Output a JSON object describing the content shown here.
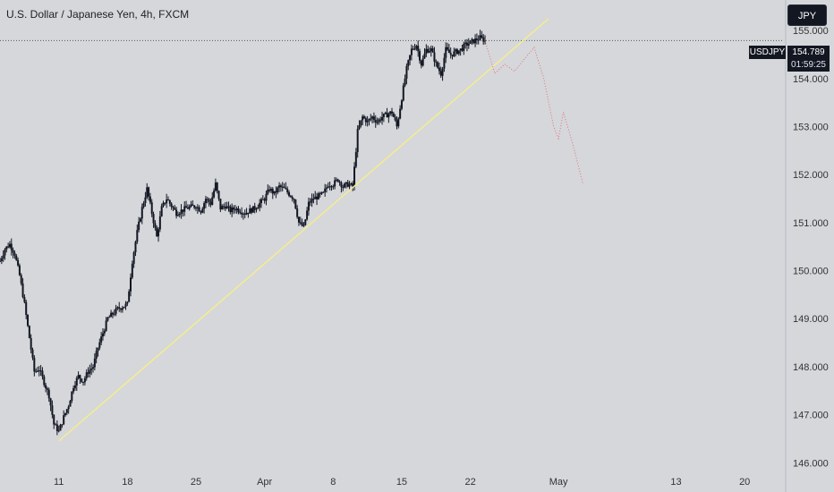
{
  "header": {
    "title": "U.S. Dollar / Japanese Yen, 4h, FXCM",
    "currency_button": "JPY"
  },
  "last_price": {
    "ticker": "USDJPY",
    "price": "154.789",
    "countdown": "01:59:25",
    "value": 154.789
  },
  "colors": {
    "background": "#d5d7db",
    "candle": "#131722",
    "trendline": "#f5ec8f",
    "projection": "#e57373",
    "badge": "#131722"
  },
  "chart_data": {
    "type": "candlestick",
    "timeframe": "4h",
    "x_ticks": [
      {
        "label": "11",
        "date": "2024-03-11"
      },
      {
        "label": "18",
        "date": "2024-03-18"
      },
      {
        "label": "25",
        "date": "2024-03-25"
      },
      {
        "label": "Apr",
        "date": "2024-04-01"
      },
      {
        "label": "8",
        "date": "2024-04-08"
      },
      {
        "label": "15",
        "date": "2024-04-15"
      },
      {
        "label": "22",
        "date": "2024-04-22"
      },
      {
        "label": "May",
        "date": "2024-05-01"
      },
      {
        "label": "13",
        "date": "2024-05-13"
      },
      {
        "label": "20",
        "date": "2024-05-20"
      }
    ],
    "y_ticks": [
      "146.000",
      "147.000",
      "148.000",
      "149.000",
      "150.000",
      "151.000",
      "152.000",
      "153.000",
      "154.000",
      "155.000"
    ],
    "y_tick_values": [
      146,
      147,
      148,
      149,
      150,
      151,
      152,
      153,
      154,
      155
    ],
    "ylim": [
      145.8,
      155.3
    ],
    "xlim": [
      "2024-03-05",
      "2024-05-24"
    ],
    "price_path": [
      [
        "2024-03-05T00:00",
        150.2
      ],
      [
        "2024-03-05T12:00",
        150.45
      ],
      [
        "2024-03-06T00:00",
        150.55
      ],
      [
        "2024-03-06T12:00",
        150.35
      ],
      [
        "2024-03-07T00:00",
        149.9
      ],
      [
        "2024-03-07T12:00",
        149.3
      ],
      [
        "2024-03-08T00:00",
        148.6
      ],
      [
        "2024-03-08T12:00",
        147.9
      ],
      [
        "2024-03-09T00:00",
        147.95
      ],
      [
        "2024-03-10T00:00",
        147.4
      ],
      [
        "2024-03-10T12:00",
        146.8
      ],
      [
        "2024-03-11T00:00",
        146.65
      ],
      [
        "2024-03-11T12:00",
        146.95
      ],
      [
        "2024-03-12T00:00",
        147.2
      ],
      [
        "2024-03-12T12:00",
        147.6
      ],
      [
        "2024-03-13T00:00",
        147.8
      ],
      [
        "2024-03-13T12:00",
        147.7
      ],
      [
        "2024-03-14T00:00",
        147.9
      ],
      [
        "2024-03-14T12:00",
        148.0
      ],
      [
        "2024-03-15T00:00",
        148.4
      ],
      [
        "2024-03-15T12:00",
        148.7
      ],
      [
        "2024-03-16T00:00",
        149.0
      ],
      [
        "2024-03-17T00:00",
        149.2
      ],
      [
        "2024-03-18T00:00",
        149.3
      ],
      [
        "2024-03-18T12:00",
        150.2
      ],
      [
        "2024-03-19T00:00",
        150.8
      ],
      [
        "2024-03-19T12:00",
        151.3
      ],
      [
        "2024-03-20T00:00",
        151.7
      ],
      [
        "2024-03-20T12:00",
        151.2
      ],
      [
        "2024-03-21T00:00",
        150.7
      ],
      [
        "2024-03-21T12:00",
        151.3
      ],
      [
        "2024-03-22T00:00",
        151.5
      ],
      [
        "2024-03-22T12:00",
        151.35
      ],
      [
        "2024-03-23T00:00",
        151.2
      ],
      [
        "2024-03-24T00:00",
        151.3
      ],
      [
        "2024-03-25T00:00",
        151.35
      ],
      [
        "2024-03-25T12:00",
        151.25
      ],
      [
        "2024-03-26T00:00",
        151.5
      ],
      [
        "2024-03-26T12:00",
        151.4
      ],
      [
        "2024-03-27T00:00",
        151.8
      ],
      [
        "2024-03-27T12:00",
        151.3
      ],
      [
        "2024-03-28T00:00",
        151.35
      ],
      [
        "2024-03-28T12:00",
        151.25
      ],
      [
        "2024-03-29T00:00",
        151.3
      ],
      [
        "2024-03-30T00:00",
        151.2
      ],
      [
        "2024-03-31T00:00",
        151.3
      ],
      [
        "2024-04-01T00:00",
        151.5
      ],
      [
        "2024-04-01T12:00",
        151.7
      ],
      [
        "2024-04-02T00:00",
        151.6
      ],
      [
        "2024-04-02T12:00",
        151.75
      ],
      [
        "2024-04-03T00:00",
        151.7
      ],
      [
        "2024-04-03T12:00",
        151.6
      ],
      [
        "2024-04-04T00:00",
        151.5
      ],
      [
        "2024-04-04T12:00",
        151.0
      ],
      [
        "2024-04-05T00:00",
        150.9
      ],
      [
        "2024-04-05T12:00",
        151.4
      ],
      [
        "2024-04-06T00:00",
        151.5
      ],
      [
        "2024-04-07T00:00",
        151.6
      ],
      [
        "2024-04-07T12:00",
        151.8
      ],
      [
        "2024-04-08T00:00",
        151.8
      ],
      [
        "2024-04-08T12:00",
        151.9
      ],
      [
        "2024-04-09T00:00",
        151.75
      ],
      [
        "2024-04-09T12:00",
        151.8
      ],
      [
        "2024-04-10T00:00",
        151.75
      ],
      [
        "2024-04-10T12:00",
        152.9
      ],
      [
        "2024-04-11T00:00",
        153.2
      ],
      [
        "2024-04-11T12:00",
        153.1
      ],
      [
        "2024-04-12T00:00",
        153.2
      ],
      [
        "2024-04-12T12:00",
        153.1
      ],
      [
        "2024-04-13T00:00",
        153.2
      ],
      [
        "2024-04-14T00:00",
        153.3
      ],
      [
        "2024-04-14T12:00",
        153.0
      ],
      [
        "2024-04-15T00:00",
        153.6
      ],
      [
        "2024-04-15T12:00",
        154.2
      ],
      [
        "2024-04-16T00:00",
        154.6
      ],
      [
        "2024-04-16T12:00",
        154.7
      ],
      [
        "2024-04-17T00:00",
        154.3
      ],
      [
        "2024-04-17T12:00",
        154.6
      ],
      [
        "2024-04-18T00:00",
        154.6
      ],
      [
        "2024-04-18T12:00",
        154.3
      ],
      [
        "2024-04-19T00:00",
        154.1
      ],
      [
        "2024-04-19T12:00",
        154.6
      ],
      [
        "2024-04-20T00:00",
        154.5
      ],
      [
        "2024-04-21T00:00",
        154.6
      ],
      [
        "2024-04-21T12:00",
        154.7
      ],
      [
        "2024-04-22T00:00",
        154.75
      ],
      [
        "2024-04-22T12:00",
        154.8
      ],
      [
        "2024-04-23T00:00",
        154.85
      ],
      [
        "2024-04-23T12:00",
        154.79
      ]
    ],
    "trendline": [
      [
        "2024-03-11T00:00",
        146.45
      ],
      [
        "2024-04-30T00:00",
        155.25
      ]
    ],
    "projection": [
      [
        "2024-04-23T12:00",
        154.79
      ],
      [
        "2024-04-24T12:00",
        154.1
      ],
      [
        "2024-04-25T12:00",
        154.3
      ],
      [
        "2024-04-26T12:00",
        154.15
      ],
      [
        "2024-04-27T12:00",
        154.4
      ],
      [
        "2024-04-28T12:00",
        154.65
      ],
      [
        "2024-04-29T12:00",
        154.0
      ],
      [
        "2024-04-30T12:00",
        153.0
      ],
      [
        "2024-05-01T00:00",
        152.75
      ],
      [
        "2024-05-01T12:00",
        153.3
      ],
      [
        "2024-05-02T12:00",
        152.6
      ],
      [
        "2024-05-03T12:00",
        151.8
      ]
    ],
    "current_price_line": 154.789,
    "grid": false,
    "title": "U.S. Dollar / Japanese Yen, 4h, FXCM"
  }
}
